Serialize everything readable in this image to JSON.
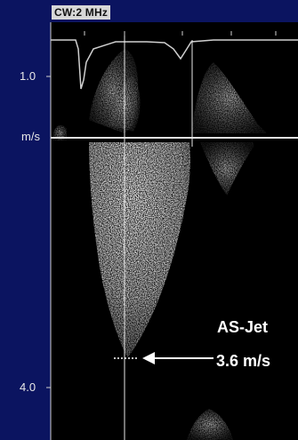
{
  "header": {
    "mode": "CW:2 MHz"
  },
  "scale": {
    "top_label": "1.0",
    "unit_label": "m/s",
    "bottom_label": "4.0"
  },
  "annotation": {
    "title": "AS-Jet",
    "value": "3.6 m/s"
  },
  "colors": {
    "frame": "#0b1460",
    "background": "#000000",
    "signal": "#e6e6e6"
  }
}
